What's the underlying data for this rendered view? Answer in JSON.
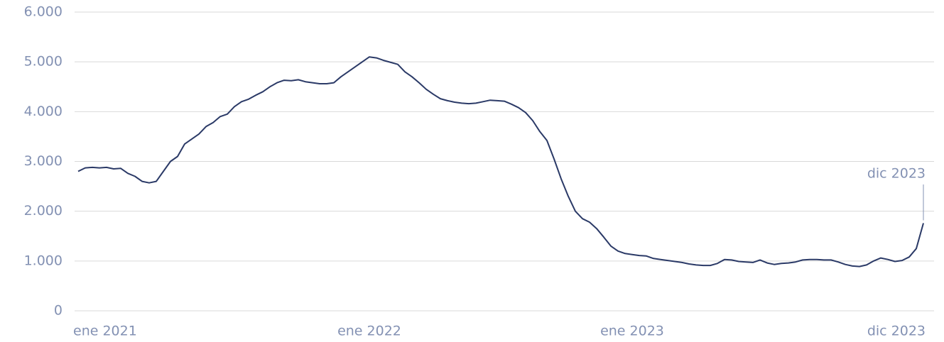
{
  "chart_data": {
    "type": "line",
    "categories": [
      "ene 2021",
      null,
      null,
      null,
      null,
      null,
      null,
      null,
      null,
      null,
      null,
      null,
      null,
      null,
      null,
      null,
      null,
      null,
      null,
      null,
      null,
      null,
      null,
      null,
      null,
      null,
      null,
      null,
      null,
      null,
      null,
      null,
      null,
      null,
      null,
      null,
      null,
      null,
      null,
      null,
      null,
      "ene 2022",
      null,
      null,
      null,
      null,
      null,
      null,
      null,
      null,
      null,
      null,
      null,
      null,
      null,
      null,
      null,
      null,
      null,
      null,
      null,
      null,
      null,
      null,
      null,
      null,
      null,
      null,
      null,
      null,
      null,
      null,
      null,
      null,
      null,
      null,
      null,
      null,
      "ene 2023",
      null,
      null,
      null,
      null,
      null,
      null,
      null,
      null,
      null,
      null,
      null,
      null,
      null,
      null,
      null,
      null,
      null,
      null,
      null,
      null,
      null,
      null,
      null,
      null,
      null,
      null,
      null,
      null,
      null,
      null,
      null,
      null,
      null,
      null,
      null,
      null,
      null,
      null,
      null,
      null,
      "dic 2023"
    ],
    "series": [
      {
        "color": "#2b3a67",
        "values": [
          2800,
          2870,
          2880,
          2870,
          2880,
          2850,
          2860,
          2760,
          2700,
          2600,
          2570,
          2600,
          2800,
          3000,
          3100,
          3350,
          3450,
          3550,
          3700,
          3780,
          3900,
          3950,
          4100,
          4200,
          4250,
          4330,
          4400,
          4500,
          4580,
          4630,
          4620,
          4640,
          4600,
          4580,
          4560,
          4560,
          4580,
          4700,
          4800,
          4900,
          5000,
          5100,
          5080,
          5030,
          4990,
          4950,
          4800,
          4700,
          4580,
          4450,
          4350,
          4260,
          4220,
          4190,
          4170,
          4160,
          4170,
          4200,
          4230,
          4220,
          4210,
          4150,
          4080,
          3980,
          3820,
          3600,
          3420,
          3050,
          2650,
          2300,
          2000,
          1850,
          1780,
          1650,
          1480,
          1300,
          1200,
          1150,
          1130,
          1110,
          1100,
          1050,
          1030,
          1010,
          990,
          970,
          940,
          920,
          910,
          910,
          950,
          1030,
          1020,
          990,
          980,
          970,
          1020,
          960,
          930,
          950,
          960,
          980,
          1020,
          1030,
          1030,
          1020,
          1020,
          980,
          930,
          900,
          890,
          920,
          1000,
          1060,
          1030,
          990,
          1010,
          1080,
          1250,
          1760
        ]
      }
    ],
    "ylim": [
      0,
      6000
    ],
    "yticks": [
      0,
      {
        "value": 1000,
        "label": "1.000"
      },
      {
        "value": 2000,
        "label": "2.000"
      },
      {
        "value": 3000,
        "label": "3.000"
      },
      {
        "value": 4000,
        "label": "4.000"
      },
      {
        "value": 5000,
        "label": "5.000"
      },
      {
        "value": 6000,
        "label": "6.000"
      }
    ],
    "grid": true,
    "annotation": "dic 2023"
  }
}
